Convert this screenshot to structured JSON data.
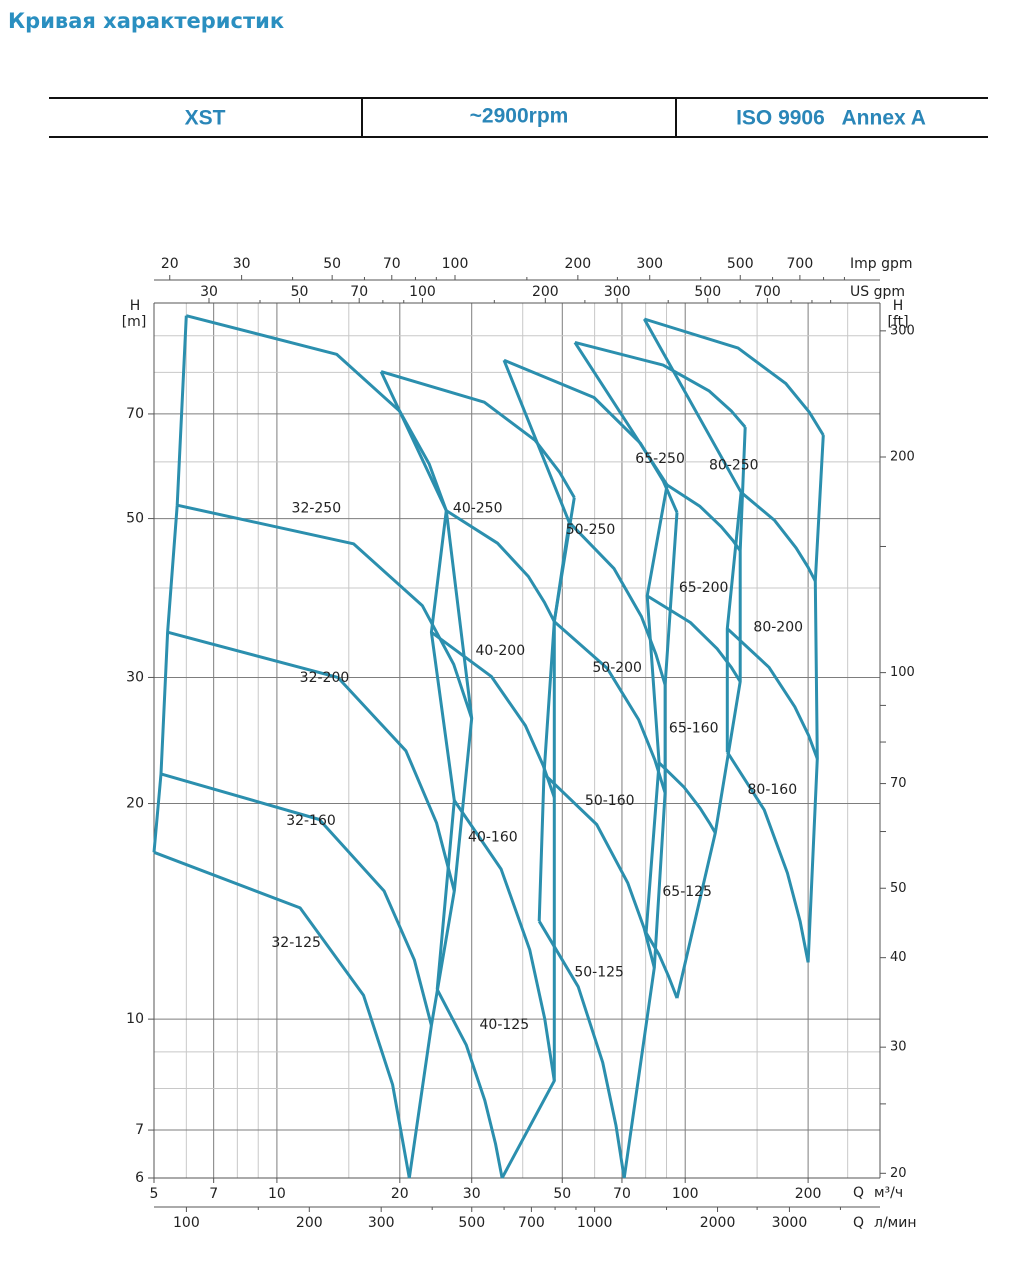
{
  "header": {
    "title": "Кривая характеристик",
    "cells": [
      "XST",
      "~2900rpm",
      "ISO 9906   Annex A"
    ]
  },
  "chart_data": {
    "type": "line",
    "log_x": true,
    "log_y": true,
    "grid": true,
    "color": "#2b8fae",
    "x_label": "Q",
    "x_unit": "м³/ч",
    "xlim": [
      5,
      300
    ],
    "xticks": [
      5,
      7,
      10,
      20,
      30,
      50,
      70,
      100,
      200
    ],
    "xminor": [
      6,
      8,
      9,
      15,
      40,
      60,
      80,
      90,
      150,
      250
    ],
    "y_label": "H",
    "y_unit": "[m]",
    "ylim": [
      6,
      100
    ],
    "yticks": [
      6,
      7,
      10,
      20,
      30,
      50,
      70
    ],
    "yminor": [
      8,
      9,
      40,
      60,
      80,
      90
    ],
    "y2_label": "H",
    "y2_unit": "[ft]",
    "y2lim": [
      19.7,
      328.1
    ],
    "y2ticks": [
      20,
      30,
      40,
      50,
      70,
      100,
      200,
      300
    ],
    "y2minor": [
      25,
      60,
      80,
      90,
      150
    ],
    "secondary_x": [
      {
        "side": "bottom",
        "label": "Q",
        "unit": "л/мин",
        "xlim": [
          83.3,
          5000
        ],
        "xticks": [
          100,
          200,
          300,
          500,
          700,
          1000,
          2000,
          3000
        ],
        "xminor": [
          150,
          400,
          600,
          800,
          900,
          1500,
          2500,
          4000
        ]
      },
      {
        "side": "top",
        "unit": "US gpm",
        "xlim": [
          22,
          1321
        ],
        "xticks": [
          30,
          50,
          70,
          100,
          200,
          300,
          500,
          700
        ],
        "xminor": [
          40,
          60,
          80,
          90,
          150,
          250,
          400,
          600,
          800,
          900,
          1000
        ]
      },
      {
        "side": "top",
        "unit": "Imp gpm",
        "xlim": [
          18.3,
          1100
        ],
        "xticks": [
          20,
          30,
          50,
          70,
          100,
          200,
          300,
          500,
          700
        ],
        "xminor": [
          40,
          60,
          80,
          90,
          150,
          250,
          400,
          600,
          800,
          900
        ]
      }
    ],
    "families": [
      {
        "labels": [
          "32-250",
          "32-200",
          "32-160",
          "32-125"
        ],
        "curves": [
          {
            "x": [
              6,
              14,
              20,
              23.6,
              26
            ],
            "values": [
              96,
              84.8,
              70.6,
              59.6,
              51.3
            ]
          },
          {
            "x": [
              5.7,
              15.4,
              22.7,
              27.1,
              30
            ],
            "values": [
              52.2,
              46.1,
              37.8,
              31.3,
              26.3
            ]
          },
          {
            "x": [
              5.4,
              14.1,
              20.7,
              24.6,
              27.2
            ],
            "values": [
              34.7,
              30,
              23.7,
              18.8,
              15.1
            ]
          },
          {
            "x": [
              5.2,
              12.7,
              18.3,
              21.7,
              23.9
            ],
            "values": [
              22,
              19,
              15.1,
              12.1,
              9.8
            ]
          },
          {
            "x": [
              5,
              11.4,
              16.3,
              19.2,
              21.1
            ],
            "values": [
              17.1,
              14.3,
              10.8,
              8.1,
              6
            ]
          }
        ]
      },
      {
        "labels": [
          "40-250",
          "40-200",
          "40-160",
          "40-125"
        ],
        "curves": [
          {
            "x": [
              18,
              32.2,
              42.9,
              49.2,
              53.5
            ],
            "values": [
              80.2,
              72.7,
              64.3,
              58.1,
              53.5
            ]
          },
          {
            "x": [
              26,
              34.7,
              41.3,
              45.2,
              47.8
            ],
            "values": [
              51.3,
              46.2,
              41.5,
              38.2,
              35.9
            ]
          },
          {
            "x": [
              23.9,
              33.5,
              40.6,
              44.9,
              47.8
            ],
            "values": [
              34.7,
              30.1,
              25.7,
              22.6,
              20.4
            ]
          },
          {
            "x": [
              27.2,
              35.4,
              41.6,
              45.3,
              47.8
            ],
            "values": [
              20.2,
              16.2,
              12.5,
              10,
              8.2
            ]
          },
          {
            "x": [
              24.7,
              29.1,
              32.3,
              34.3,
              35.6
            ],
            "values": [
              11,
              9.2,
              7.7,
              6.7,
              6
            ]
          }
        ]
      },
      {
        "labels": [
          "50-250",
          "50-200",
          "50-160",
          "50-125"
        ],
        "curves": [
          {
            "x": [
              36,
              59.8,
              77.7,
              88.4,
              95.5
            ],
            "values": [
              83.2,
              73.8,
              63.7,
              56.4,
              51
            ]
          },
          {
            "x": [
              52,
              66.9,
              78.1,
              84.8,
              89.3
            ],
            "values": [
              49.4,
              42.6,
              36.5,
              32.3,
              29.3
            ]
          },
          {
            "x": [
              47.8,
              64.4,
              76.9,
              84.3,
              89.3
            ],
            "values": [
              35.9,
              30.9,
              26.2,
              23,
              20.7
            ]
          },
          {
            "x": [
              45.1,
              60.7,
              72.3,
              79.3,
              84
            ],
            "values": [
              22,
              18.7,
              15.5,
              13.4,
              11.8
            ]
          },
          {
            "x": [
              43.9,
              54.7,
              62.8,
              67.7,
              70.9
            ],
            "values": [
              13.7,
              11.1,
              8.7,
              7.1,
              6
            ]
          }
        ]
      },
      {
        "labels": [
          "65-250",
          "65-200",
          "65-160",
          "65-125"
        ],
        "curves": [
          {
            "x": [
              53.7,
              88.3,
              114.3,
              129.9,
              140.3
            ],
            "values": [
              88.1,
              81.9,
              75.4,
              70.6,
              67.1
            ]
          },
          {
            "x": [
              90.3,
              108.7,
              122.6,
              130.9,
              136.4
            ],
            "values": [
              55.7,
              52,
              48.7,
              46.6,
              45.1
            ]
          },
          {
            "x": [
              80.7,
              103,
              119.7,
              129.7,
              136.4
            ],
            "values": [
              39,
              35.8,
              32.9,
              31,
              29.6
            ]
          },
          {
            "x": [
              86.3,
              99.2,
              108.8,
              114.6,
              118.5
            ],
            "values": [
              22.8,
              21.1,
              19.7,
              18.8,
              18.2
            ]
          },
          {
            "x": [
              80.2,
              86.3,
              90.9,
              93.7,
              95.5
            ],
            "values": [
              13.2,
              12.3,
              11.5,
              11,
              10.7
            ]
          }
        ]
      },
      {
        "labels": [
          "80-250",
          "80-200",
          "80-160"
        ],
        "curves": [
          {
            "x": [
              79.4,
              134.8,
              176.4,
              201.3,
              217.9
            ],
            "values": [
              95,
              86.5,
              77.2,
              70.4,
              65.4
            ]
          },
          {
            "x": [
              137.1,
              165.6,
              186.9,
              199.8,
              208.3
            ],
            "values": [
              54.4,
              49.7,
              45.5,
              42.8,
              40.9
            ]
          },
          {
            "x": [
              126.8,
              160.4,
              185.5,
              200.6,
              210.7
            ],
            "values": [
              35.1,
              31,
              27.3,
              24.9,
              23.1
            ]
          },
          {
            "x": [
              126.8,
              156.1,
              178,
              191.2,
              200
            ],
            "values": [
              23.6,
              19.6,
              16,
              13.7,
              12
            ]
          }
        ]
      }
    ]
  }
}
